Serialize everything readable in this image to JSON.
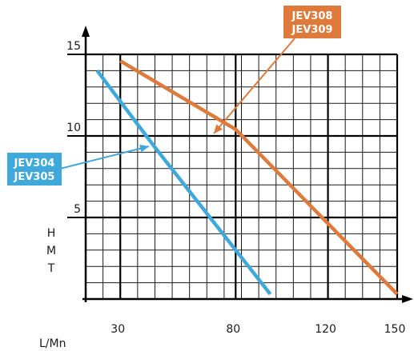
{
  "chart_data": {
    "type": "line",
    "xlabel": "L/Mn",
    "ylabel_letters": [
      "H",
      "M",
      "T"
    ],
    "x_ticks": [
      30,
      80,
      120,
      150
    ],
    "y_ticks": [
      5,
      10,
      15
    ],
    "xlim": [
      15,
      150
    ],
    "ylim": [
      0,
      15
    ],
    "grid": true,
    "series": [
      {
        "name_lines": [
          "JEV304",
          "JEV305"
        ],
        "color": "#3fa9dc",
        "points": [
          [
            20,
            14
          ],
          [
            45,
            9.3
          ],
          [
            95,
            0.3
          ]
        ]
      },
      {
        "name_lines": [
          "JEV308",
          "JEV309"
        ],
        "color": "#e07a3a",
        "points": [
          [
            30,
            14.6
          ],
          [
            80,
            10.4
          ],
          [
            150,
            0.3
          ]
        ]
      }
    ]
  }
}
